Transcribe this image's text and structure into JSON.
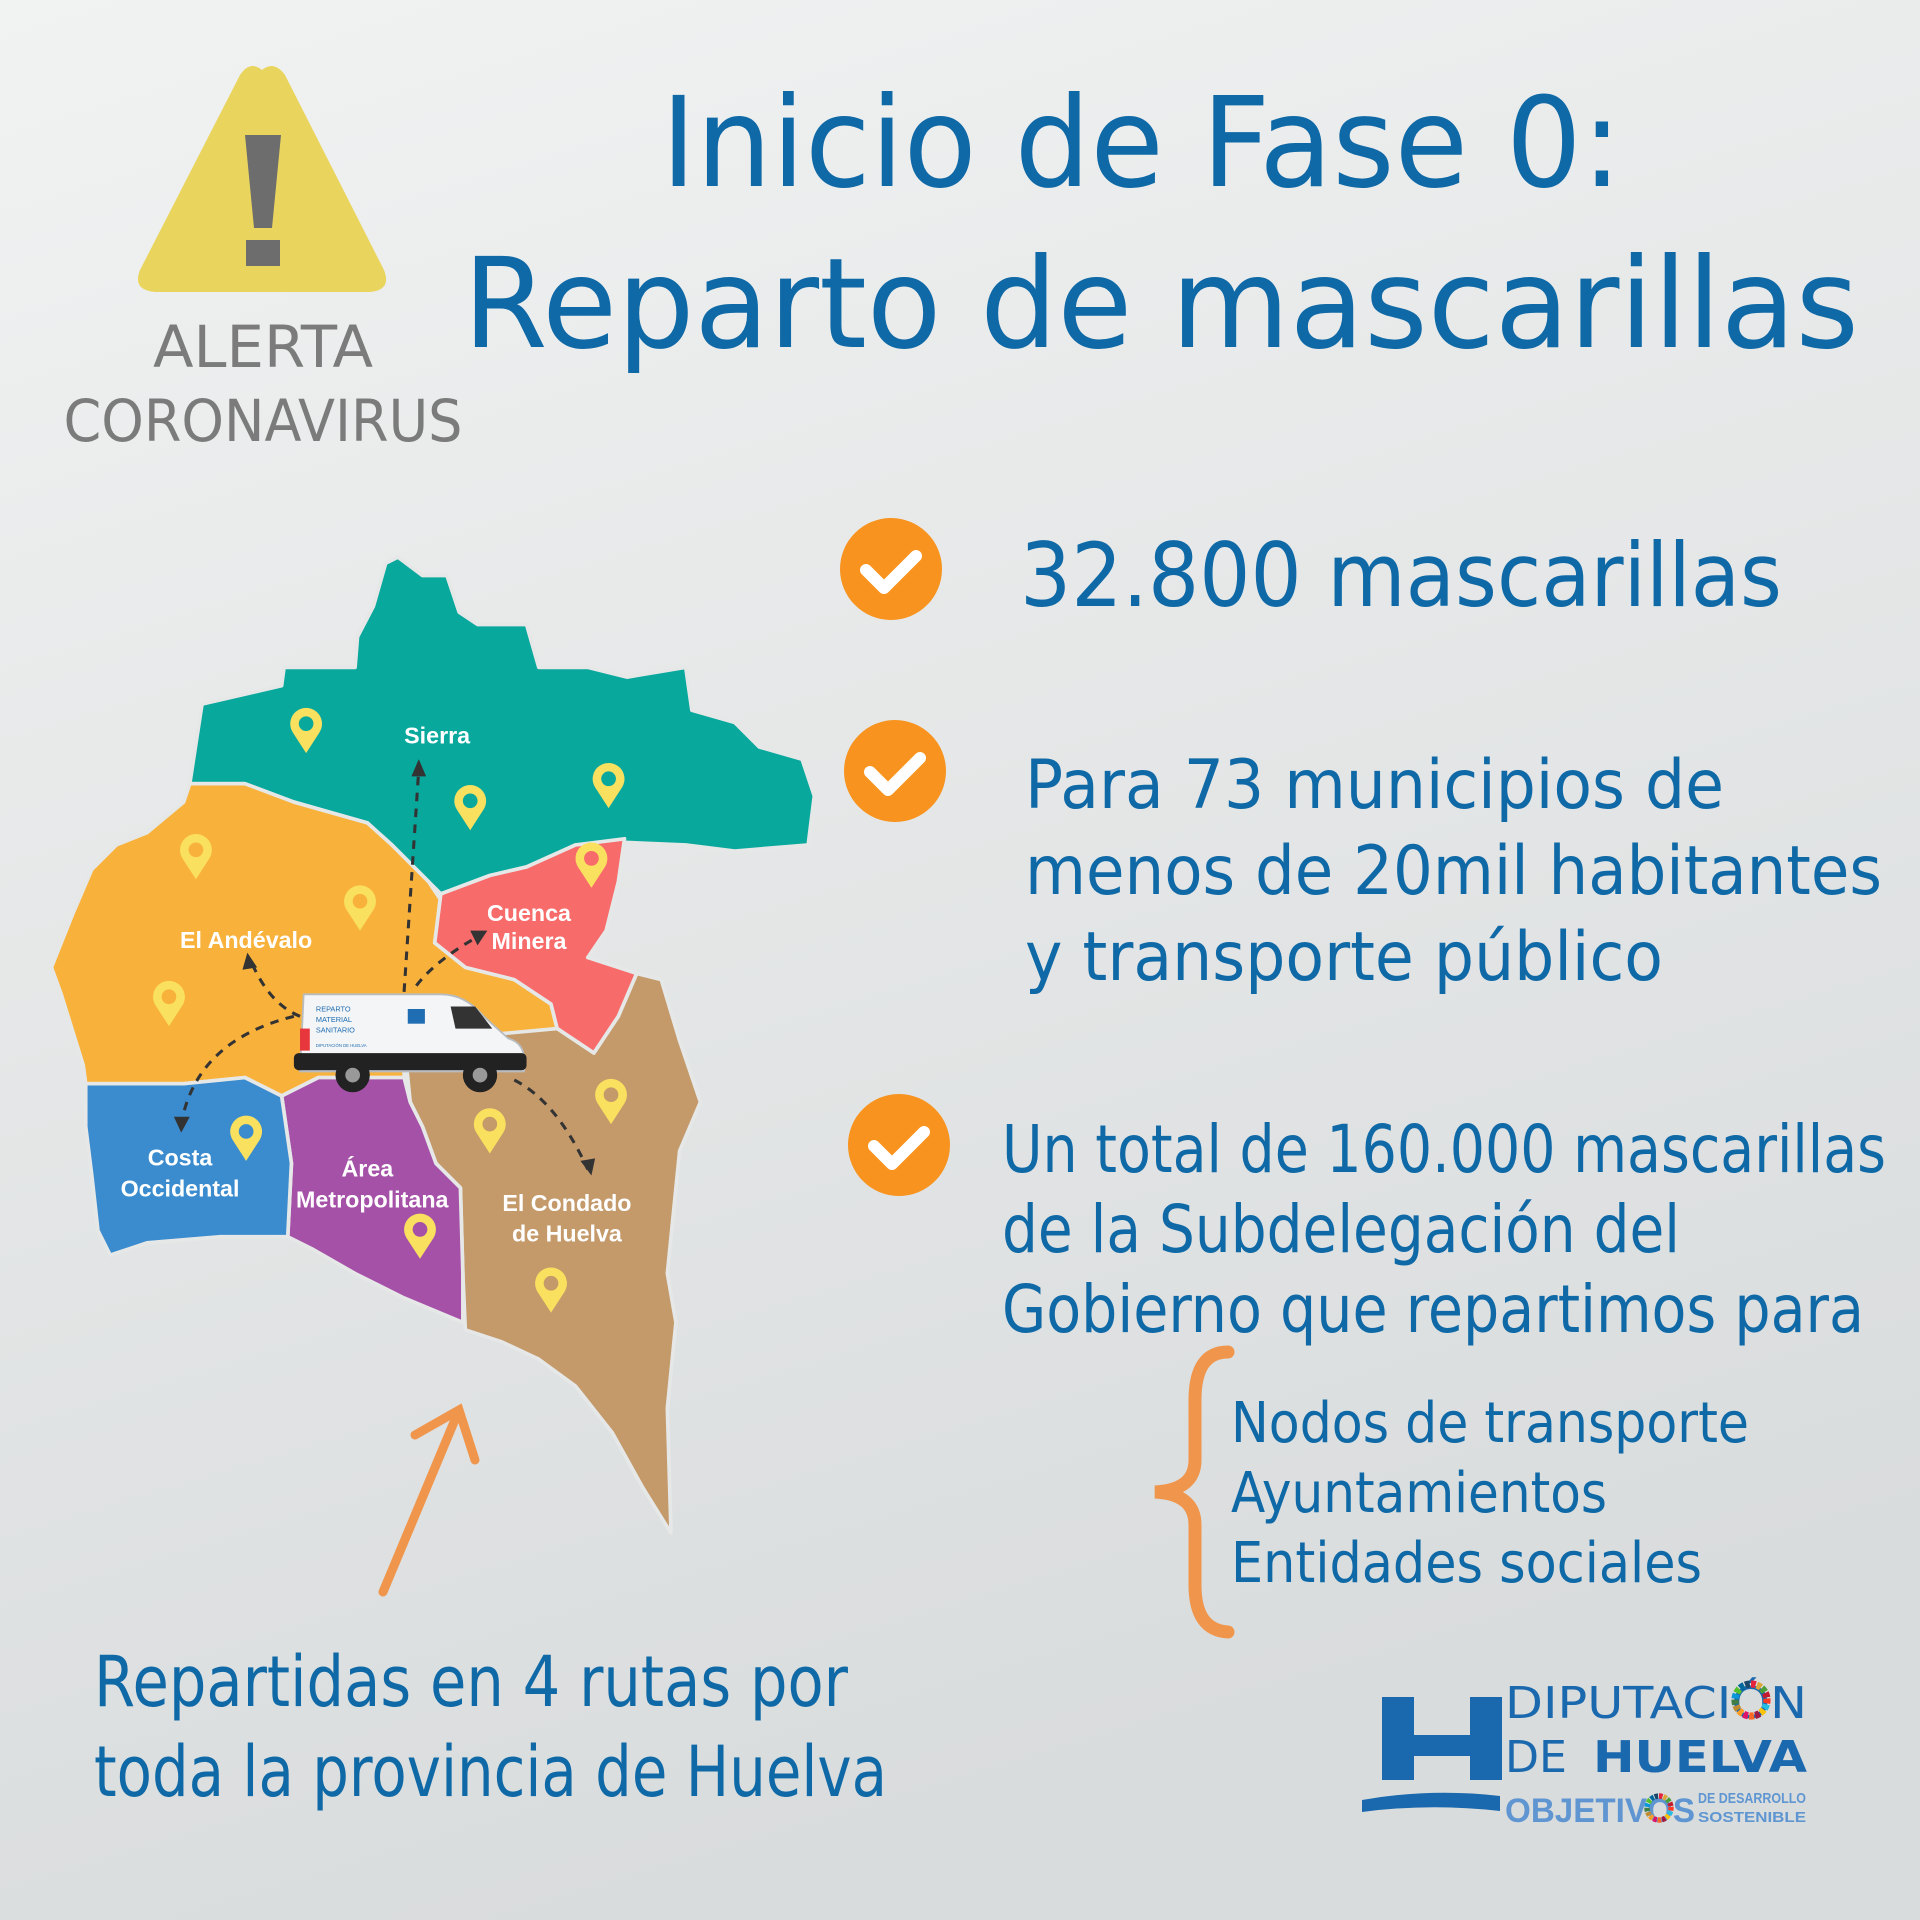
{
  "alert": {
    "line1": "ALERTA",
    "line2": "CORONAVIRUS",
    "icon": "warning-triangle-icon"
  },
  "title": {
    "line1": "Inicio de Fase 0:",
    "line2": "Reparto de mascarillas"
  },
  "points": [
    {
      "icon": "check-circle-icon",
      "lines": [
        "32.800 mascarillas"
      ]
    },
    {
      "icon": "check-circle-icon",
      "lines": [
        "Para 73 municipios de",
        "menos de 20mil habitantes",
        "y transporte público"
      ]
    },
    {
      "icon": "check-circle-icon",
      "lines": [
        "Un total de 160.000 mascarillas",
        "de la Subdelegación del",
        "Gobierno que repartimos para"
      ]
    }
  ],
  "destinations": [
    "Nodos de transporte",
    "Ayuntamientos",
    "Entidades sociales"
  ],
  "map": {
    "regions": [
      {
        "name": "Sierra",
        "lines": [
          "Sierra"
        ],
        "color": "#08a89d"
      },
      {
        "name": "El Andévalo",
        "lines": [
          "El Andévalo"
        ],
        "color": "#f8b23c"
      },
      {
        "name": "Cuenca Minera",
        "lines": [
          "Cuenca",
          "Minera"
        ],
        "color": "#f86b6b"
      },
      {
        "name": "Costa Occidental",
        "lines": [
          "Costa",
          "Occidental"
        ],
        "color": "#3b8ccf"
      },
      {
        "name": "Área Metropolitana",
        "lines": [
          "Área",
          "Metropolitana"
        ],
        "color": "#a651a8"
      },
      {
        "name": "El Condado de Huelva",
        "lines": [
          "El Condado",
          "de Huelva"
        ],
        "color": "#c49a6b"
      }
    ],
    "pin_color": "#fae05f",
    "van": {
      "text1": "REPARTO",
      "text2": "MATERIAL",
      "text3": "SANITARIO",
      "text4": "DIPUTACIÓN DE HUELVA"
    }
  },
  "footer": {
    "line1": "Repartidas en 4 rutas por",
    "line2": "toda la provincia de Huelva"
  },
  "logo": {
    "line1": "DIPUTACIÓN",
    "line2a": "DE",
    "line2b": "HUELVA",
    "line3": "OBJETIVOS",
    "line3a": "DE DESARROLLO",
    "line3b": "SOSTENIBLE"
  },
  "colors": {
    "title_blue": "#0f69a6",
    "check_orange": "#f7931e",
    "brace_orange": "#f0964c",
    "alert_grey": "#7b7b7b",
    "triangle_yellow": "#e9d55e"
  }
}
